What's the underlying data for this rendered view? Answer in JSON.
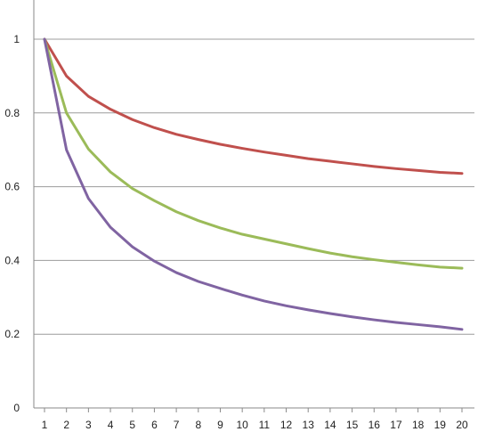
{
  "chart_data": {
    "type": "line",
    "title": "",
    "xlabel": "",
    "ylabel": "",
    "x": [
      1,
      2,
      3,
      4,
      5,
      6,
      7,
      8,
      9,
      10,
      11,
      12,
      13,
      14,
      15,
      16,
      17,
      18,
      19,
      20
    ],
    "ylim": [
      0,
      1.1
    ],
    "yticks": [
      "0",
      "0.2",
      "0.4",
      "0.6",
      "0.8",
      "1"
    ],
    "grid": "horizontal",
    "legend": "none",
    "series": [
      {
        "color": "#c0504d",
        "values": [
          1.0,
          0.9,
          0.845,
          0.81,
          0.782,
          0.76,
          0.742,
          0.728,
          0.715,
          0.704,
          0.694,
          0.685,
          0.676,
          0.669,
          0.662,
          0.655,
          0.649,
          0.644,
          0.639,
          0.636
        ]
      },
      {
        "color": "#9bbb59",
        "values": [
          1.0,
          0.8,
          0.702,
          0.64,
          0.595,
          0.562,
          0.532,
          0.508,
          0.488,
          0.471,
          0.458,
          0.445,
          0.432,
          0.42,
          0.41,
          0.402,
          0.395,
          0.388,
          0.382,
          0.379
        ]
      },
      {
        "color": "#8064a2",
        "values": [
          1.0,
          0.7,
          0.568,
          0.49,
          0.437,
          0.398,
          0.367,
          0.343,
          0.324,
          0.306,
          0.29,
          0.277,
          0.266,
          0.256,
          0.247,
          0.239,
          0.232,
          0.226,
          0.22,
          0.213
        ]
      }
    ]
  }
}
